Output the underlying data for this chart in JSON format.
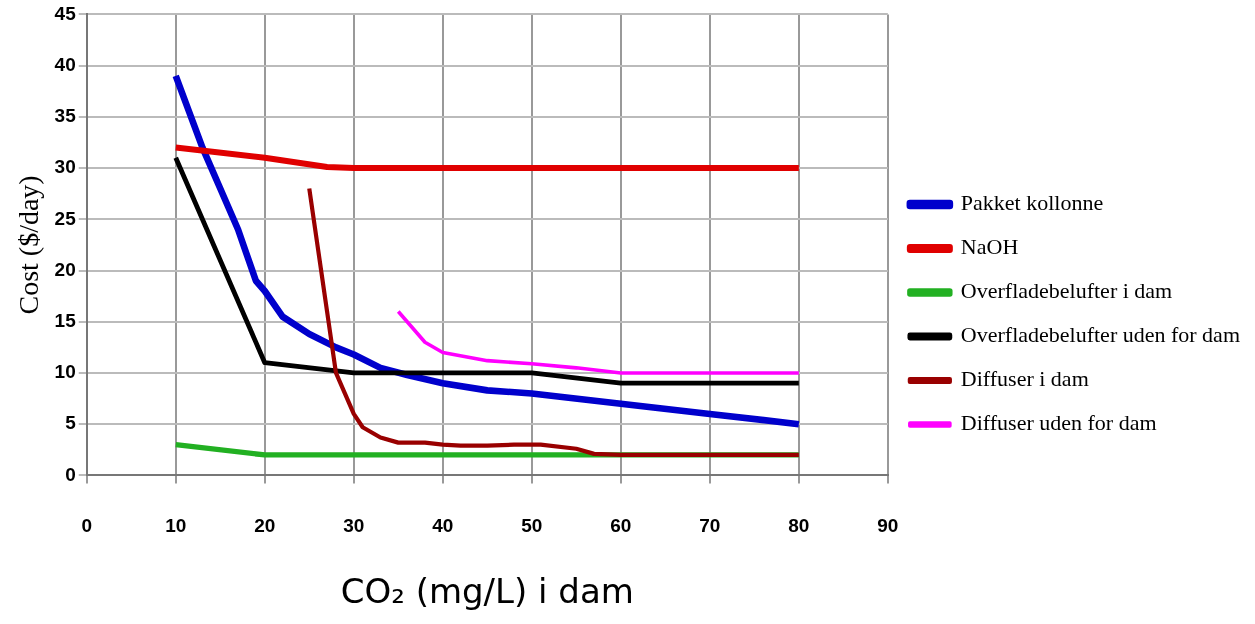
{
  "chart_data": {
    "type": "line",
    "xlabel": "CO₂ (mg/L) i dam",
    "ylabel": "Cost ($/day)",
    "xlim": [
      0,
      90
    ],
    "xticks": [
      0,
      10,
      20,
      30,
      40,
      50,
      60,
      70,
      80,
      90
    ],
    "ylim": [
      0,
      45
    ],
    "yticks": [
      0,
      5,
      10,
      15,
      20,
      25,
      30,
      35,
      40,
      45
    ],
    "grid": true,
    "legend": "right",
    "marker": "none",
    "line_style": "solid",
    "series": [
      {
        "name": "Pakket kollonne",
        "color": "#0000cc",
        "x": [
          10,
          13,
          15,
          17,
          19,
          20,
          22,
          25,
          28,
          30,
          33,
          36,
          40,
          45,
          50,
          60,
          70,
          80
        ],
        "values": [
          39,
          32,
          28,
          24,
          19,
          18,
          15.5,
          13.8,
          12.5,
          11.8,
          10.5,
          9.8,
          9,
          8.3,
          8,
          7,
          6,
          5
        ]
      },
      {
        "name": "NaOH",
        "color": "#e00000",
        "x": [
          10,
          20,
          27,
          30,
          40,
          50,
          60,
          70,
          80
        ],
        "values": [
          32,
          31,
          30.1,
          30,
          30,
          30,
          30,
          30,
          30
        ]
      },
      {
        "name": "Overfladebelufter i dam",
        "color": "#22b022",
        "x": [
          10,
          20,
          30,
          40,
          50,
          60,
          70,
          80
        ],
        "values": [
          3,
          2,
          2,
          2,
          2,
          2,
          2,
          2
        ]
      },
      {
        "name": "Overfladebelufter uden for dam",
        "color": "#000000",
        "x": [
          10,
          20,
          30,
          40,
          50,
          60,
          70,
          80
        ],
        "values": [
          31,
          11,
          10,
          10,
          10,
          9,
          9,
          9
        ]
      },
      {
        "name": "Diffuser i dam",
        "color": "#990000",
        "x": [
          25,
          26,
          27,
          28,
          29,
          30,
          31,
          33,
          35,
          38,
          40,
          42,
          45,
          48,
          51,
          55,
          57,
          60,
          70,
          80
        ],
        "values": [
          28,
          22,
          16,
          10,
          8,
          6,
          4.7,
          3.7,
          3.2,
          3.2,
          3,
          2.9,
          2.9,
          3,
          3,
          2.6,
          2.1,
          2,
          2,
          2
        ]
      },
      {
        "name": "Diffuser uden for dam",
        "color": "#ff00ff",
        "x": [
          35,
          36,
          38,
          40,
          45,
          50,
          55,
          60,
          70,
          80
        ],
        "values": [
          16,
          15,
          13,
          12,
          11.2,
          10.9,
          10.5,
          10,
          10,
          10
        ]
      }
    ]
  }
}
